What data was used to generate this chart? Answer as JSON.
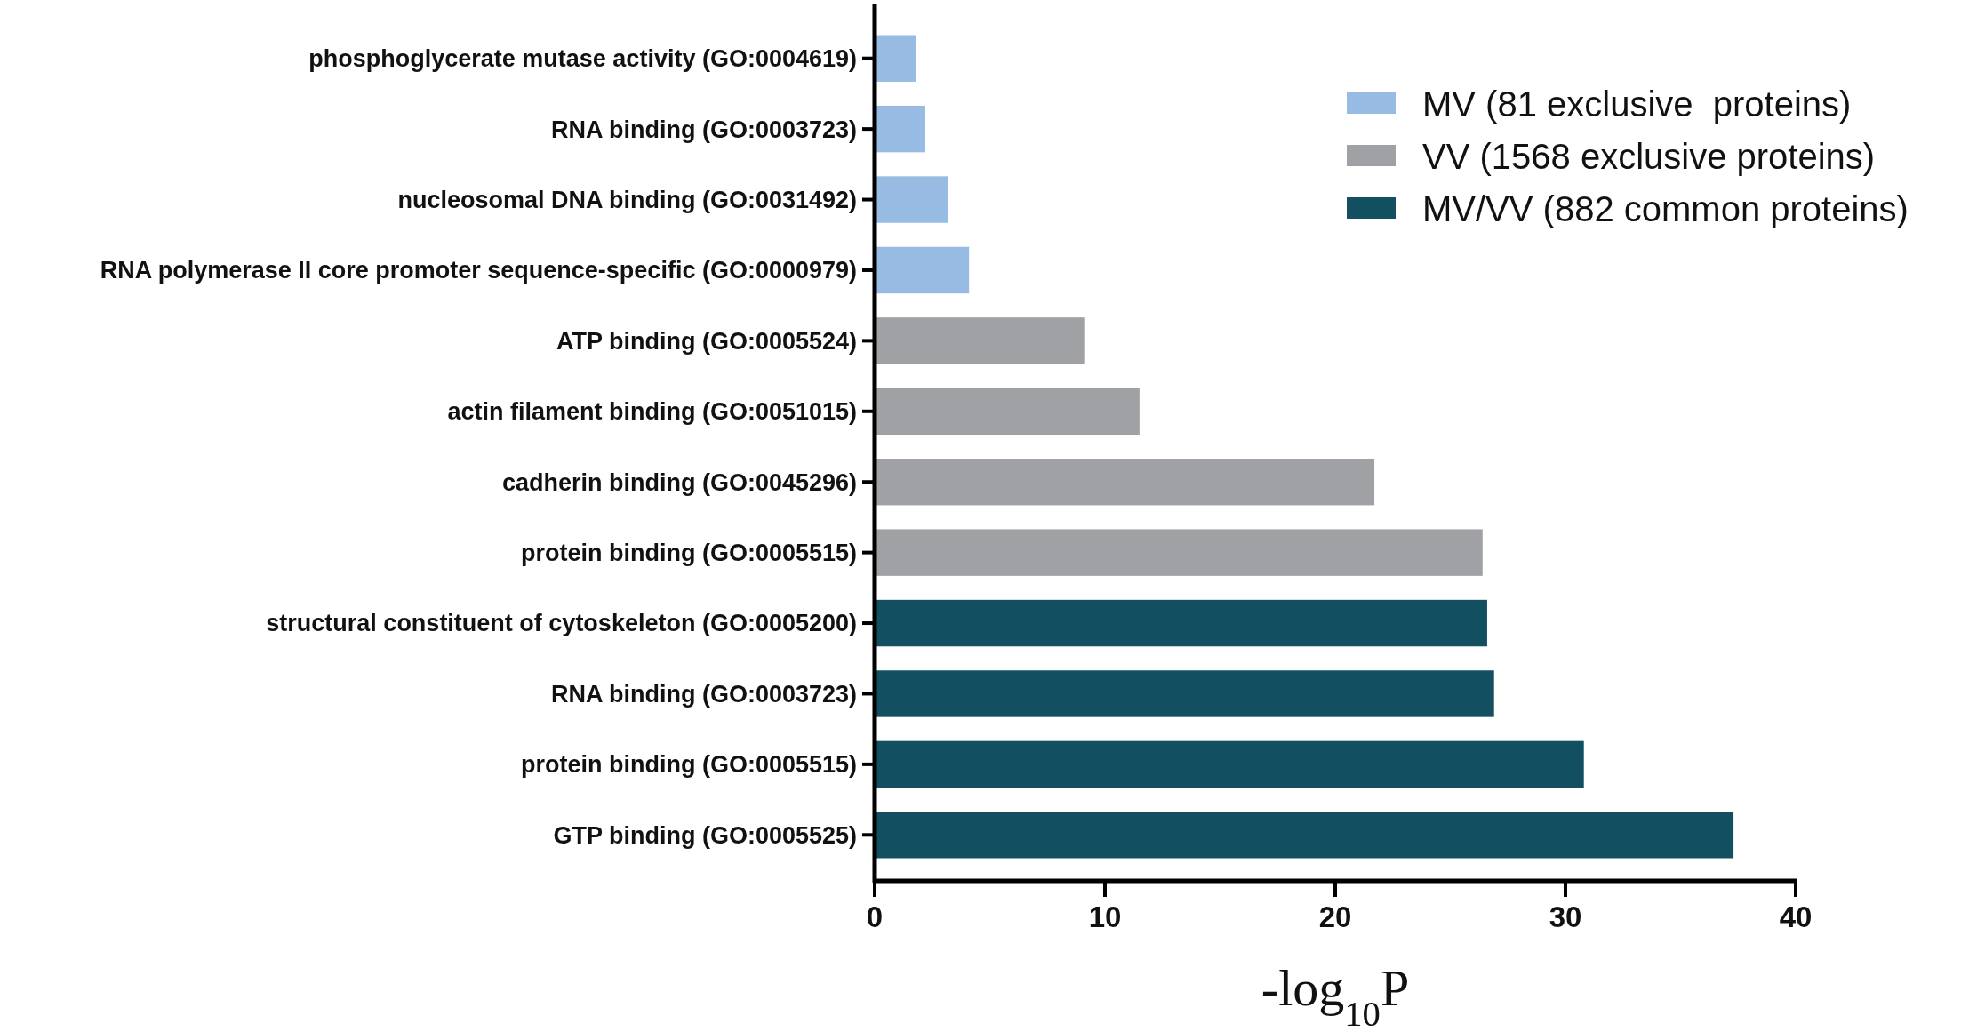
{
  "chart_data": {
    "type": "bar",
    "orientation": "horizontal",
    "categories": [
      "phosphoglycerate mutase activity (GO:0004619)",
      "RNA binding (GO:0003723)",
      "nucleosomal DNA binding (GO:0031492)",
      "RNA polymerase II core promoter sequence-specific (GO:0000979)",
      "ATP binding (GO:0005524)",
      "actin filament binding (GO:0051015)",
      "cadherin binding (GO:0045296)",
      "protein binding (GO:0005515)",
      "structural constituent of cytoskeleton (GO:0005200)",
      "RNA binding (GO:0003723)",
      "protein binding (GO:0005515)",
      "GTP binding (GO:0005525)"
    ],
    "series": [
      {
        "name": "MV (81 exclusive  proteins)",
        "color": "#97bbe2",
        "values": [
          1.8,
          2.2,
          3.2,
          4.1,
          null,
          null,
          null,
          null,
          null,
          null,
          null,
          null
        ]
      },
      {
        "name": "VV (1568 exclusive proteins)",
        "color": "#a0a1a5",
        "values": [
          null,
          null,
          null,
          null,
          9.1,
          11.5,
          21.7,
          26.4,
          null,
          null,
          null,
          null
        ]
      },
      {
        "name": "MV/VV (882 common proteins)",
        "color": "#124f60",
        "values": [
          null,
          null,
          null,
          null,
          null,
          null,
          null,
          null,
          26.6,
          26.9,
          30.8,
          37.3
        ]
      }
    ],
    "xlim": [
      0,
      40
    ],
    "xticks": [
      0,
      10,
      20,
      30,
      40
    ],
    "xlabel": "-log$_{10}$P",
    "legend": "top right",
    "grid": false
  }
}
